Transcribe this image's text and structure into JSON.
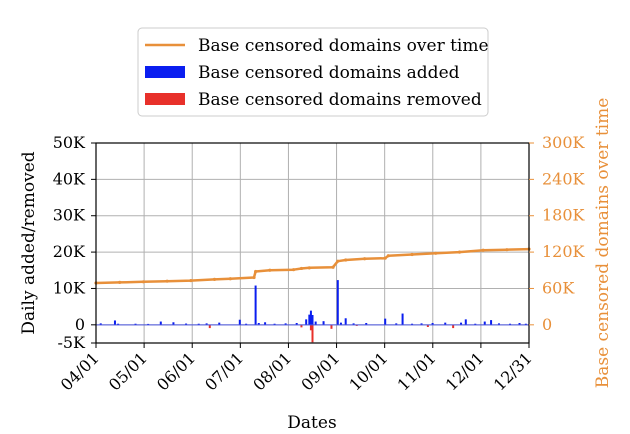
{
  "chart_data": {
    "type": "bar",
    "xlabel": "Dates",
    "ylabel_left": "Daily added/removed",
    "ylabel_right": "Base censored domains over time",
    "legend": {
      "placement": "top-center",
      "entries": [
        {
          "label": "Base censored domains over time",
          "kind": "line",
          "color": "#e8903a"
        },
        {
          "label": "Base censored domains added",
          "kind": "bar",
          "color": "#0a1ef0"
        },
        {
          "label": "Base censored domains removed",
          "kind": "bar",
          "color": "#e8302a"
        }
      ]
    },
    "x_ticks": [
      "04/01",
      "05/01",
      "06/01",
      "07/01",
      "08/01",
      "09/01",
      "10/01",
      "11/01",
      "12/01",
      "12/31"
    ],
    "x_range_days": [
      0,
      274
    ],
    "y_left": {
      "range": [
        -5000,
        50000
      ],
      "ticks": [
        {
          "value": -5000,
          "label": "-5K"
        },
        {
          "value": 0,
          "label": "0"
        },
        {
          "value": 10000,
          "label": "10K"
        },
        {
          "value": 20000,
          "label": "20K"
        },
        {
          "value": 30000,
          "label": "30K"
        },
        {
          "value": 40000,
          "label": "40K"
        },
        {
          "value": 50000,
          "label": "50K"
        }
      ]
    },
    "y_right": {
      "range": [
        -30000,
        300000
      ],
      "ticks": [
        {
          "value": 0,
          "label": "0"
        },
        {
          "value": 60000,
          "label": "60K"
        },
        {
          "value": 120000,
          "label": "120K"
        },
        {
          "value": 180000,
          "label": "180K"
        },
        {
          "value": 240000,
          "label": "240K"
        },
        {
          "value": 300000,
          "label": "300K"
        }
      ]
    },
    "grid": true,
    "series": [
      {
        "name": "Base censored domains over time",
        "type": "line",
        "axis": "right",
        "color": "#e8903a",
        "points": [
          [
            0,
            69000
          ],
          [
            15,
            70000
          ],
          [
            30,
            71000
          ],
          [
            45,
            72000
          ],
          [
            60,
            73000
          ],
          [
            75,
            75000
          ],
          [
            85,
            76000
          ],
          [
            100,
            78000
          ],
          [
            101,
            88000
          ],
          [
            110,
            90000
          ],
          [
            125,
            91000
          ],
          [
            130,
            93000
          ],
          [
            135,
            94000
          ],
          [
            150,
            95000
          ],
          [
            153,
            105000
          ],
          [
            158,
            107000
          ],
          [
            170,
            109000
          ],
          [
            183,
            110000
          ],
          [
            185,
            114000
          ],
          [
            200,
            116000
          ],
          [
            215,
            118000
          ],
          [
            230,
            120000
          ],
          [
            245,
            123000
          ],
          [
            260,
            124000
          ],
          [
            274,
            125000
          ]
        ]
      },
      {
        "name": "Base censored domains added",
        "type": "bar",
        "axis": "left",
        "color": "#0a1ef0",
        "points": [
          [
            3,
            400
          ],
          [
            12,
            1200
          ],
          [
            14,
            300
          ],
          [
            25,
            300
          ],
          [
            33,
            250
          ],
          [
            41,
            900
          ],
          [
            49,
            700
          ],
          [
            57,
            350
          ],
          [
            65,
            300
          ],
          [
            70,
            400
          ],
          [
            78,
            600
          ],
          [
            91,
            1400
          ],
          [
            95,
            300
          ],
          [
            101,
            10800
          ],
          [
            103,
            500
          ],
          [
            107,
            700
          ],
          [
            113,
            300
          ],
          [
            120,
            400
          ],
          [
            127,
            500
          ],
          [
            133,
            1500
          ],
          [
            135,
            2800
          ],
          [
            136,
            3900
          ],
          [
            137,
            2700
          ],
          [
            139,
            900
          ],
          [
            144,
            1000
          ],
          [
            153,
            12300
          ],
          [
            155,
            600
          ],
          [
            158,
            1800
          ],
          [
            163,
            400
          ],
          [
            171,
            500
          ],
          [
            183,
            1700
          ],
          [
            190,
            400
          ],
          [
            194,
            3100
          ],
          [
            200,
            300
          ],
          [
            206,
            400
          ],
          [
            213,
            500
          ],
          [
            221,
            600
          ],
          [
            231,
            600
          ],
          [
            234,
            1500
          ],
          [
            240,
            300
          ],
          [
            246,
            900
          ],
          [
            250,
            1300
          ],
          [
            255,
            400
          ],
          [
            262,
            300
          ],
          [
            268,
            500
          ],
          [
            272,
            300
          ]
        ]
      },
      {
        "name": "Base censored domains removed",
        "type": "bar",
        "axis": "left",
        "color": "#e8302a",
        "points": [
          [
            72,
            -900
          ],
          [
            130,
            -700
          ],
          [
            136,
            -1500
          ],
          [
            137,
            -4800
          ],
          [
            149,
            -1100
          ],
          [
            165,
            -300
          ],
          [
            210,
            -600
          ],
          [
            226,
            -900
          ]
        ]
      }
    ]
  }
}
